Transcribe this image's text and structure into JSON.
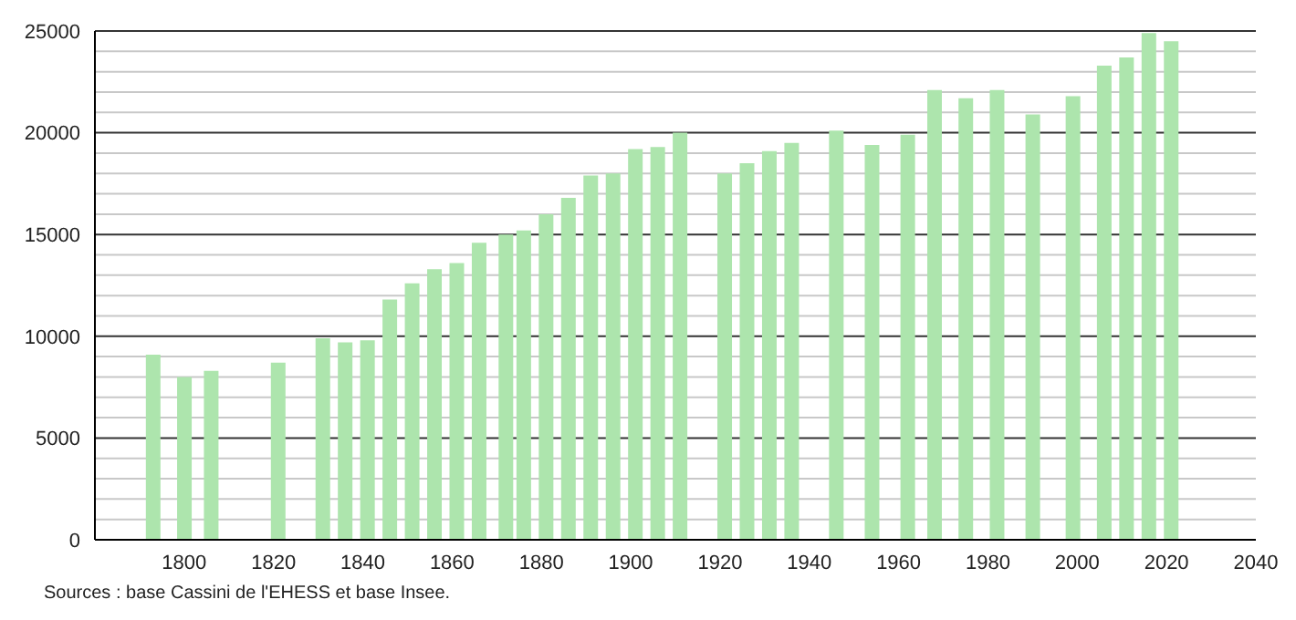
{
  "chart_data": {
    "type": "bar",
    "x": [
      1793,
      1800,
      1806,
      1821,
      1831,
      1836,
      1841,
      1846,
      1851,
      1856,
      1861,
      1866,
      1872,
      1876,
      1881,
      1886,
      1891,
      1896,
      1901,
      1906,
      1911,
      1921,
      1926,
      1931,
      1936,
      1946,
      1954,
      1962,
      1968,
      1975,
      1982,
      1990,
      1999,
      2006,
      2011,
      2016,
      2021
    ],
    "values": [
      9100,
      8000,
      8300,
      8700,
      9900,
      9700,
      9800,
      11800,
      12600,
      13300,
      13600,
      14600,
      15000,
      15200,
      16000,
      16800,
      17900,
      18000,
      19200,
      19300,
      20000,
      18000,
      18500,
      19100,
      19500,
      20100,
      19400,
      19900,
      22100,
      21700,
      22100,
      20900,
      21800,
      23300,
      23700,
      24900,
      24500
    ],
    "color": "#ade5ad",
    "xlim": [
      1780,
      2040
    ],
    "xticks": [
      1800,
      1820,
      1840,
      1860,
      1880,
      1900,
      1920,
      1940,
      1960,
      1980,
      2000,
      2020,
      2040
    ],
    "ylim": [
      0,
      25000
    ],
    "yticks": [
      0,
      {
        "value": 1000,
        "label": null
      },
      {
        "value": 2000,
        "label": null
      },
      {
        "value": 3000,
        "label": null
      },
      {
        "value": 4000,
        "label": null
      },
      5000,
      {
        "value": 6000,
        "label": null
      },
      {
        "value": 7000,
        "label": null
      },
      {
        "value": 8000,
        "label": null
      },
      {
        "value": 9000,
        "label": null
      },
      10000,
      {
        "value": 11000,
        "label": null
      },
      {
        "value": 12000,
        "label": null
      },
      {
        "value": 13000,
        "label": null
      },
      {
        "value": 14000,
        "label": null
      },
      15000,
      {
        "value": 16000,
        "label": null
      },
      {
        "value": 17000,
        "label": null
      },
      {
        "value": 18000,
        "label": null
      },
      {
        "value": 19000,
        "label": null
      },
      20000,
      {
        "value": 21000,
        "label": null
      },
      {
        "value": 22000,
        "label": null
      },
      {
        "value": 23000,
        "label": null
      },
      {
        "value": 24000,
        "label": null
      },
      25000
    ],
    "grid": "y",
    "legend": false,
    "annotations": [
      "Sources : base Cassini de l'EHESS et base Insee."
    ]
  }
}
